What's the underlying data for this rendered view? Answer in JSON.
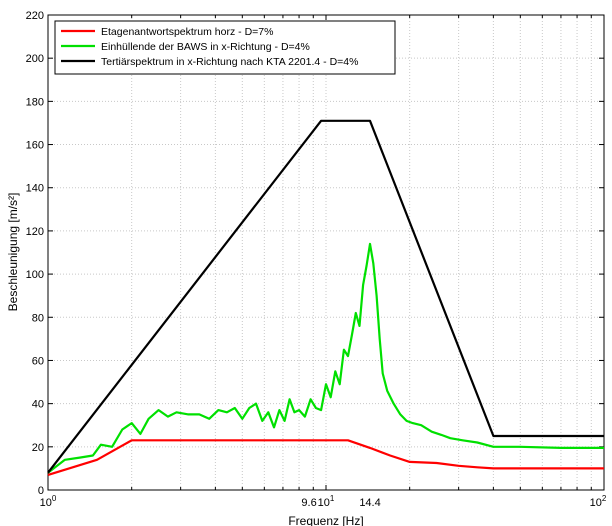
{
  "chart_data": {
    "type": "line",
    "xlabel": "Frequenz [Hz]",
    "ylabel": "Beschleunigung [m/s²]",
    "x_scale": "log",
    "xlim": [
      1,
      100
    ],
    "ylim": [
      0,
      220
    ],
    "y_ticks": [
      0,
      20,
      40,
      60,
      80,
      100,
      120,
      140,
      160,
      180,
      200,
      220
    ],
    "x_ticks": [
      {
        "value": 1,
        "base": "10",
        "exp": "0"
      },
      {
        "value": 10,
        "base": "10",
        "exp": "1"
      },
      {
        "value": 100,
        "base": "10",
        "exp": "2"
      }
    ],
    "extra_x_labels": [
      {
        "value": 9.6,
        "text": "9.6"
      },
      {
        "value": 14.4,
        "text": "14.4"
      }
    ],
    "grid": true,
    "legend_position": "top-left",
    "series": [
      {
        "name": "Etagenantwortspektrum horz - D=7%",
        "color": "#ff0000",
        "x": [
          1,
          1.5,
          2.0,
          4.0,
          8.0,
          12.0,
          14.4,
          17.0,
          20.0,
          25.0,
          30.0,
          35.0,
          40.0,
          50.0,
          70.0,
          100.0
        ],
        "y": [
          7,
          14,
          23,
          23,
          23,
          23,
          19.5,
          16,
          13,
          12.5,
          11.2,
          10.5,
          10,
          10,
          10,
          10
        ]
      },
      {
        "name": "Einhüllende der BAWS in x-Richtung - D=4%",
        "color": "#00e000",
        "x": [
          1,
          1.15,
          1.3,
          1.45,
          1.55,
          1.7,
          1.85,
          2.0,
          2.15,
          2.3,
          2.5,
          2.7,
          2.9,
          3.2,
          3.5,
          3.8,
          4.1,
          4.4,
          4.7,
          5.0,
          5.3,
          5.6,
          5.9,
          6.2,
          6.5,
          6.8,
          7.1,
          7.4,
          7.7,
          8.0,
          8.4,
          8.8,
          9.2,
          9.6,
          10.0,
          10.4,
          10.8,
          11.2,
          11.6,
          12.0,
          12.4,
          12.8,
          13.2,
          13.6,
          14.0,
          14.4,
          14.8,
          15.2,
          15.6,
          16.0,
          16.6,
          17.5,
          18.5,
          19.5,
          20.5,
          22.0,
          24.0,
          26.0,
          28.0,
          31.0,
          35.0,
          40.0,
          50.0,
          70.0,
          100.0
        ],
        "y": [
          8,
          14,
          15,
          16,
          21,
          20,
          28,
          31,
          26,
          33,
          37,
          34,
          36,
          35,
          35,
          33,
          37,
          36,
          38,
          33,
          38,
          40,
          32,
          36,
          29,
          37,
          32,
          42,
          36,
          37,
          34,
          42,
          38,
          37,
          49,
          43,
          55,
          49,
          65,
          62,
          72,
          82,
          76,
          95,
          104,
          114,
          105,
          90,
          70,
          54,
          46,
          40,
          35,
          32,
          31,
          30,
          27,
          25.5,
          24,
          23,
          22,
          20,
          20,
          19.5,
          19.5
        ]
      },
      {
        "name": "Tertiärspektrum in x-Richtung nach KTA 2201.4 - D=4%",
        "color": "#000000",
        "x": [
          1,
          9.6,
          14.4,
          40.0,
          100.0
        ],
        "y": [
          8,
          171,
          171,
          25,
          25
        ]
      }
    ]
  }
}
